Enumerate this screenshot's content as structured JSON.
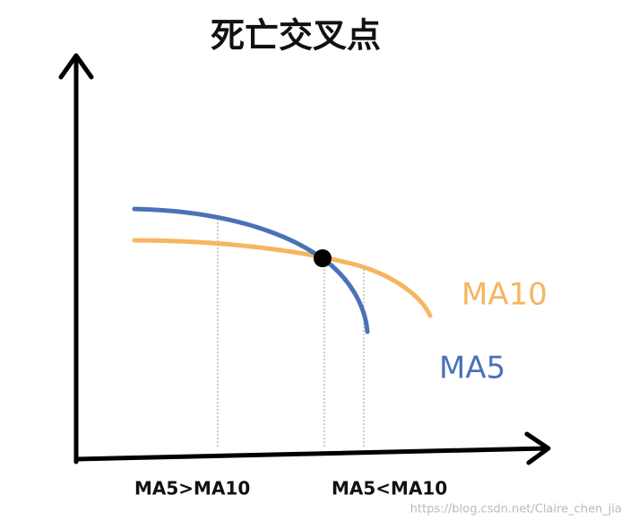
{
  "title": "死亡交叉点",
  "lines": [
    {
      "label": "MA10"
    },
    {
      "label": "MA5"
    }
  ],
  "regions": [
    {
      "label": "MA5>MA10"
    },
    {
      "label": "MA5<MA10"
    }
  ],
  "watermark": "https://blog.csdn.net/Claire_chen_jia"
}
